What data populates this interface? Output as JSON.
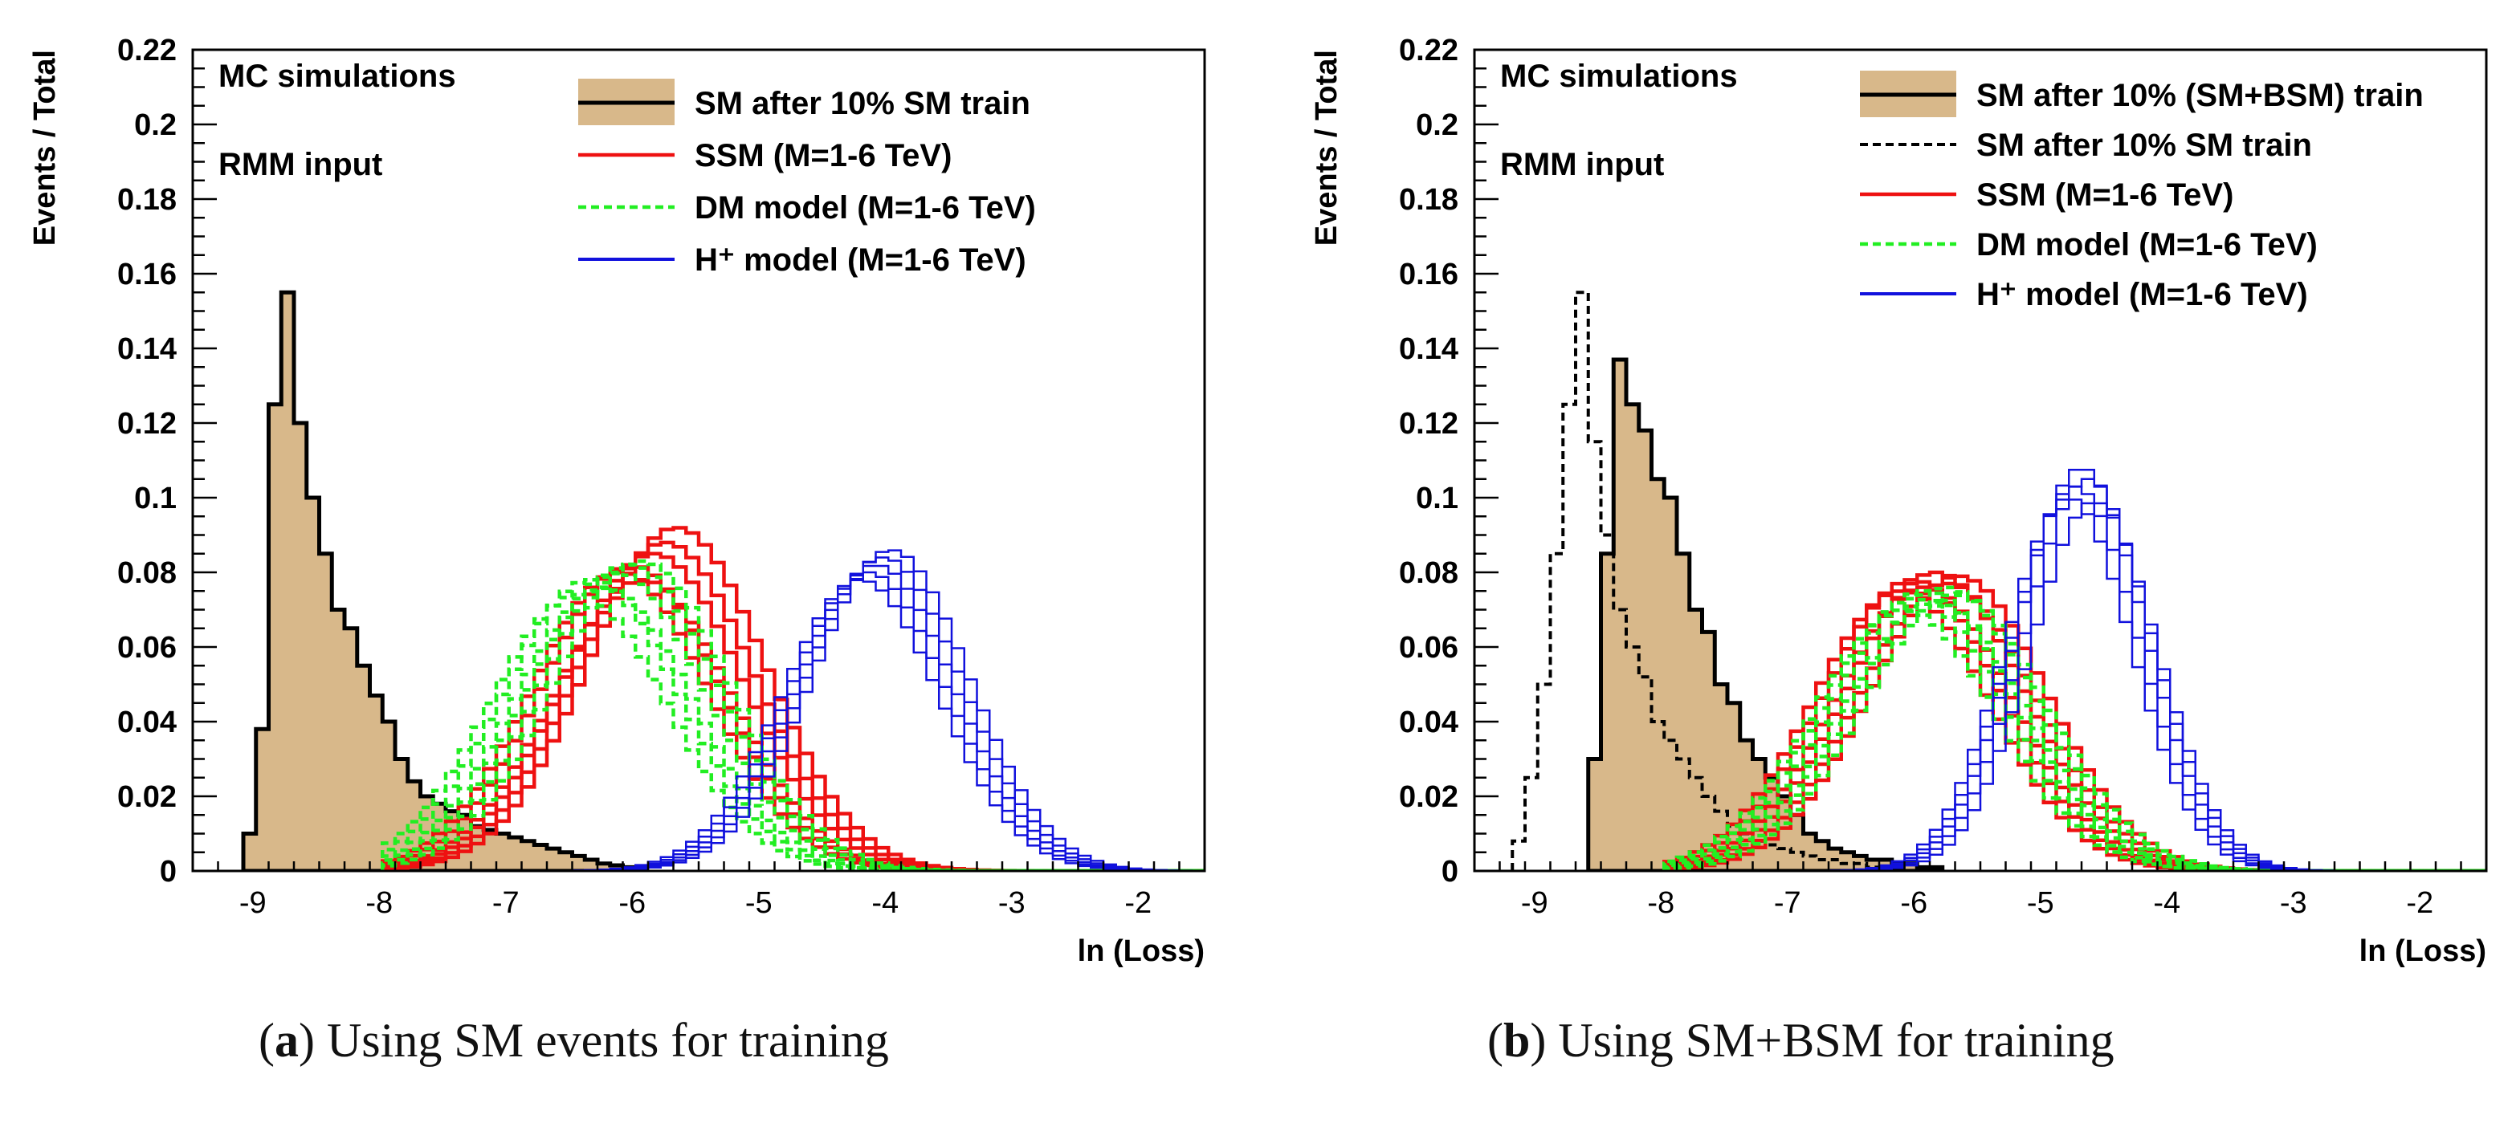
{
  "captions": [
    {
      "label": "a",
      "text": "Using SM events for training"
    },
    {
      "label": "b",
      "text": "Using SM+BSM for training"
    }
  ],
  "chart_data": [
    {
      "id": "a",
      "type": "histogram",
      "title": "",
      "xlabel": "ln (Loss)",
      "ylabel": "Events / Total",
      "xlim": [
        -9.5,
        -1.5
      ],
      "ylim": [
        0,
        0.22
      ],
      "xticks": [
        "-9",
        "-8",
        "-7",
        "-6",
        "-5",
        "-4",
        "-3",
        "-2"
      ],
      "yticks": [
        "0",
        "0.02",
        "0.04",
        "0.06",
        "0.08",
        "0.1",
        "0.12",
        "0.14",
        "0.16",
        "0.18",
        "0.2",
        "0.22"
      ],
      "annotations": [
        "MC simulations",
        "RMM input"
      ],
      "legend": [
        {
          "label": "SM after 10% SM train",
          "style": "filled"
        },
        {
          "label": "SSM  (M=1-6 TeV)",
          "style": "red"
        },
        {
          "label": "DM model (M=1-6 TeV)",
          "style": "green-dashed"
        },
        {
          "label": "H⁺ model (M=1-6 TeV)",
          "style": "blue"
        }
      ],
      "series": [
        {
          "name": "SM after 10% SM train",
          "style": "filled",
          "x_start": -9.1,
          "bin_width": 0.1,
          "values": [
            0.01,
            0.038,
            0.125,
            0.155,
            0.12,
            0.1,
            0.085,
            0.07,
            0.065,
            0.055,
            0.047,
            0.04,
            0.03,
            0.024,
            0.02,
            0.018,
            0.016,
            0.015,
            0.012,
            0.011,
            0.01,
            0.009,
            0.008,
            0.007,
            0.006,
            0.005,
            0.004,
            0.003,
            0.002,
            0.0015,
            0.001
          ]
        },
        {
          "name": "SSM",
          "style": "red",
          "mean": -5.9,
          "sigma": 0.7,
          "count": 6,
          "shift": 0.09,
          "peaks": [
            0.08,
            0.082,
            0.078,
            0.085,
            0.088,
            0.092
          ]
        },
        {
          "name": "DM model",
          "style": "green-dashed",
          "mean": -6.2,
          "sigma": 0.7,
          "count": 6,
          "shift": 0.1,
          "peaks": [
            0.074,
            0.078,
            0.076,
            0.08,
            0.082,
            0.083
          ]
        },
        {
          "name": "H⁺ model",
          "style": "blue",
          "mean": -4.1,
          "sigma": 0.62,
          "count": 5,
          "shift": 0.06,
          "peaks": [
            0.078,
            0.08,
            0.082,
            0.084,
            0.086
          ]
        }
      ]
    },
    {
      "id": "b",
      "type": "histogram",
      "title": "",
      "xlabel": "ln (Loss)",
      "ylabel": "Events / Total",
      "xlim": [
        -9.5,
        -1.5
      ],
      "ylim": [
        0,
        0.22
      ],
      "xticks": [
        "-9",
        "-8",
        "-7",
        "-6",
        "-5",
        "-4",
        "-3",
        "-2"
      ],
      "yticks": [
        "0",
        "0.02",
        "0.04",
        "0.06",
        "0.08",
        "0.1",
        "0.12",
        "0.14",
        "0.16",
        "0.18",
        "0.2",
        "0.22"
      ],
      "annotations": [
        "MC simulations",
        "RMM input"
      ],
      "legend": [
        {
          "label": "SM after 10% (SM+BSM) train",
          "style": "filled"
        },
        {
          "label": "SM after 10% SM train",
          "style": "black-dashed"
        },
        {
          "label": "SSM  (M=1-6 TeV)",
          "style": "red"
        },
        {
          "label": "DM model (M=1-6 TeV)",
          "style": "green-dashed"
        },
        {
          "label": "H⁺ model (M=1-6 TeV)",
          "style": "blue"
        }
      ],
      "series": [
        {
          "name": "SM after 10% (SM+BSM) train",
          "style": "filled",
          "x_start": -8.6,
          "bin_width": 0.1,
          "values": [
            0.03,
            0.085,
            0.137,
            0.125,
            0.118,
            0.105,
            0.1,
            0.085,
            0.07,
            0.064,
            0.05,
            0.045,
            0.035,
            0.03,
            0.025,
            0.02,
            0.015,
            0.01,
            0.008,
            0.006,
            0.005,
            0.004,
            0.003,
            0.003,
            0.002,
            0.002,
            0.001,
            0.001
          ]
        },
        {
          "name": "SM after 10% SM train",
          "style": "black-dashed",
          "x_start": -9.2,
          "bin_width": 0.1,
          "values": [
            0.008,
            0.025,
            0.05,
            0.085,
            0.125,
            0.155,
            0.115,
            0.09,
            0.07,
            0.06,
            0.052,
            0.04,
            0.035,
            0.03,
            0.025,
            0.02,
            0.016,
            0.012,
            0.01,
            0.008,
            0.007,
            0.006,
            0.005,
            0.004,
            0.003,
            0.003,
            0.002,
            0.002,
            0.001
          ]
        },
        {
          "name": "SSM",
          "style": "red",
          "mean": -5.9,
          "sigma": 0.7,
          "count": 6,
          "shift": 0.09,
          "peaks": [
            0.075,
            0.078,
            0.076,
            0.08,
            0.077,
            0.079
          ]
        },
        {
          "name": "DM model",
          "style": "green-dashed",
          "mean": -5.9,
          "sigma": 0.72,
          "count": 6,
          "shift": 0.08,
          "peaks": [
            0.07,
            0.073,
            0.075,
            0.072,
            0.076,
            0.074
          ]
        },
        {
          "name": "H⁺ model",
          "style": "blue",
          "mean": -4.7,
          "sigma": 0.5,
          "count": 5,
          "shift": 0.05,
          "peaks": [
            0.1,
            0.103,
            0.108,
            0.105,
            0.099
          ]
        }
      ]
    }
  ]
}
